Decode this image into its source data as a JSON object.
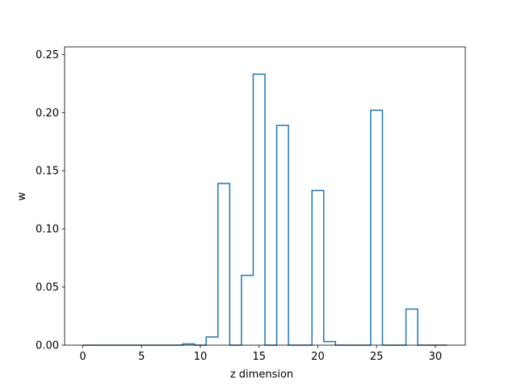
{
  "chart_data": {
    "type": "line",
    "drawstyle": "steps-mid",
    "title": "",
    "xlabel": "z dimension",
    "ylabel": "w",
    "xlim": [
      -1.55,
      32.55
    ],
    "ylim": [
      0,
      0.2565
    ],
    "xticks": [
      0,
      5,
      10,
      15,
      20,
      25,
      30
    ],
    "yticks": [
      0.0,
      0.05,
      0.1,
      0.15,
      0.2,
      0.25
    ],
    "ytick_labels": [
      "0.00",
      "0.05",
      "0.10",
      "0.15",
      "0.20",
      "0.25"
    ],
    "grid": false,
    "color": "#1f77b4",
    "series": [
      {
        "x": [
          0,
          1,
          2,
          3,
          4,
          5,
          6,
          7,
          8,
          9,
          10,
          11,
          12,
          13,
          14,
          15,
          16,
          17,
          18,
          19,
          20,
          21,
          22,
          23,
          24,
          25,
          26,
          27,
          28,
          29,
          30,
          31
        ],
        "values": [
          0,
          0,
          0,
          0,
          0,
          0,
          0,
          0,
          0,
          0.001,
          0,
          0.007,
          0.139,
          0,
          0.06,
          0.233,
          0,
          0.189,
          0,
          0,
          0.133,
          0.003,
          0,
          0,
          0,
          0.202,
          0,
          0,
          0.031,
          0,
          0,
          0
        ]
      }
    ]
  }
}
